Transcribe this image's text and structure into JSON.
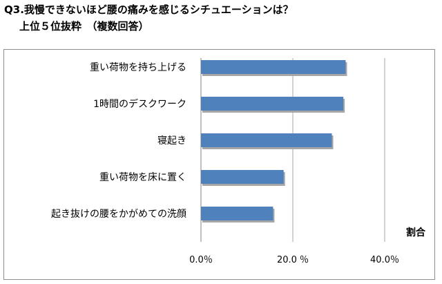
{
  "title": "Q3.我慢できないほど腰の痛みを感じるシチュエーションは？",
  "subtitle": "上位５位抜粋　（複数回答）",
  "chart_data": {
    "type": "bar",
    "orientation": "horizontal",
    "categories": [
      "重い荷物を持ち上げる",
      "1時間のデスクワーク",
      "寝起き",
      "重い荷物を床に置く",
      "起き抜けの腰をかがめての洗顔"
    ],
    "values": [
      31.5,
      31.0,
      28.5,
      18.0,
      15.7
    ],
    "xlim": [
      0,
      40
    ],
    "xticks": [
      "0.0％",
      "20.0 ％",
      "40.0％"
    ],
    "xlabel": "割合",
    "ylabel": "",
    "grid": true,
    "colors": {
      "bar": "#4f81bd",
      "bar_shadow": "#a6a6a6",
      "grid": "#a6a6a6"
    }
  }
}
